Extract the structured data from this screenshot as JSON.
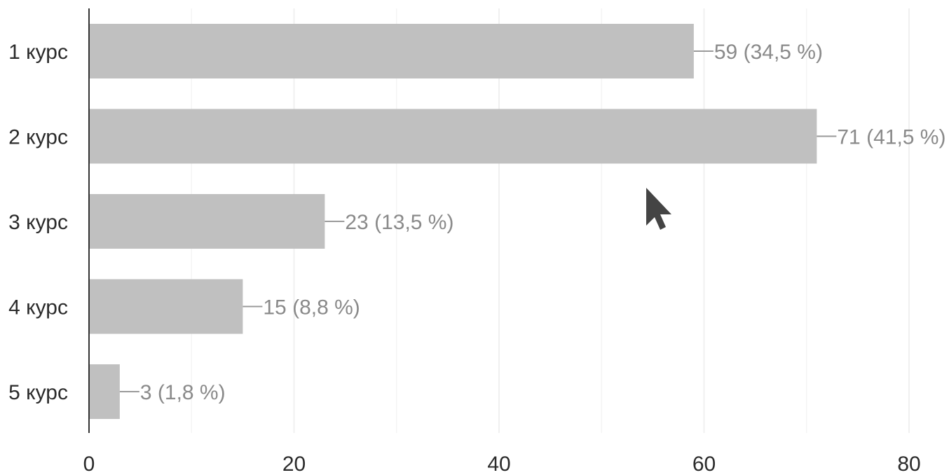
{
  "chart_data": {
    "type": "bar",
    "orientation": "horizontal",
    "categories": [
      "1 курс",
      "2 курс",
      "3 курс",
      "4 курс",
      "5 курс"
    ],
    "values": [
      59,
      71,
      23,
      15,
      3
    ],
    "value_labels": [
      "59 (34,5 %)",
      "71 (41,5 %)",
      "23 (13,5 %)",
      "15 (8,8 %)",
      "3 (1,8 %)"
    ],
    "xlim": [
      0,
      80
    ],
    "x_ticks": [
      "0",
      "20",
      "40",
      "60",
      "80"
    ],
    "x_tick_values": [
      0,
      20,
      40,
      60,
      80
    ],
    "minor_grid_values": [
      10,
      30,
      50,
      70
    ],
    "grid": true,
    "bar_color": "#c0c0c0",
    "title": "",
    "xlabel": "",
    "ylabel": ""
  },
  "cursor": {
    "icon": "mouse-pointer-icon",
    "color": "#444444"
  }
}
